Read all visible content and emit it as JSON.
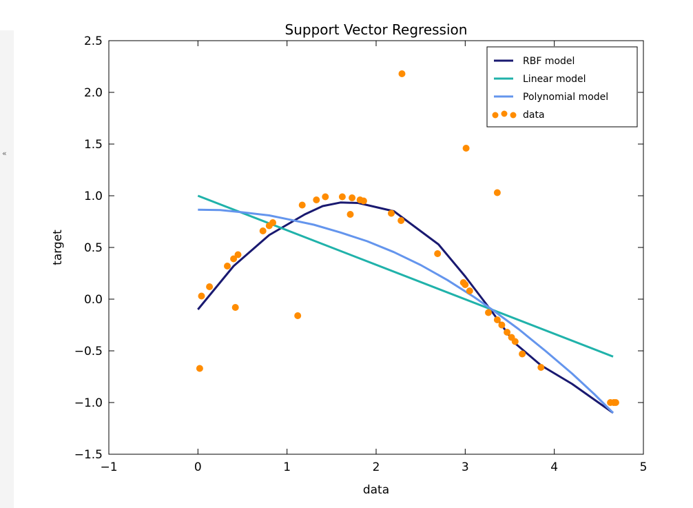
{
  "sidebar": {
    "collapse_glyph": "«"
  },
  "chart_data": {
    "type": "scatter",
    "title": "Support Vector Regression",
    "xlabel": "data",
    "ylabel": "target",
    "xlim": [
      -1,
      5
    ],
    "ylim": [
      -1.5,
      2.5
    ],
    "x_ticks": [
      -1,
      0,
      1,
      2,
      3,
      4,
      5
    ],
    "y_ticks": [
      -1.5,
      -1.0,
      -0.5,
      0.0,
      0.5,
      1.0,
      1.5,
      2.0,
      2.5
    ],
    "x_tick_labels": [
      "−1",
      "0",
      "1",
      "2",
      "3",
      "4",
      "5"
    ],
    "y_tick_labels": [
      "−1.5",
      "−1.0",
      "−0.5",
      "0.0",
      "0.5",
      "1.0",
      "1.5",
      "2.0",
      "2.5"
    ],
    "grid": false,
    "legend_position": "top-right",
    "series": [
      {
        "name": "RBF model",
        "kind": "line",
        "color": "#191970",
        "points": [
          [
            0.0,
            -0.1
          ],
          [
            0.4,
            0.32
          ],
          [
            0.8,
            0.62
          ],
          [
            1.2,
            0.82
          ],
          [
            1.4,
            0.9
          ],
          [
            1.6,
            0.935
          ],
          [
            1.8,
            0.93
          ],
          [
            2.2,
            0.85
          ],
          [
            2.7,
            0.53
          ],
          [
            3.0,
            0.22
          ],
          [
            3.3,
            -0.12
          ],
          [
            3.55,
            -0.42
          ],
          [
            3.85,
            -0.64
          ],
          [
            4.2,
            -0.82
          ],
          [
            4.66,
            -1.1
          ]
        ]
      },
      {
        "name": "Linear model",
        "kind": "line",
        "color": "#20b2aa",
        "points": [
          [
            0.0,
            1.0
          ],
          [
            4.66,
            -0.555
          ]
        ]
      },
      {
        "name": "Polynomial model",
        "kind": "line",
        "color": "#6495ed",
        "points": [
          [
            0.0,
            0.865
          ],
          [
            0.25,
            0.862
          ],
          [
            0.5,
            0.84
          ],
          [
            0.8,
            0.81
          ],
          [
            1.0,
            0.775
          ],
          [
            1.3,
            0.72
          ],
          [
            1.6,
            0.645
          ],
          [
            1.9,
            0.56
          ],
          [
            2.2,
            0.455
          ],
          [
            2.5,
            0.33
          ],
          [
            2.8,
            0.185
          ],
          [
            3.1,
            0.02
          ],
          [
            3.3,
            -0.1
          ],
          [
            3.6,
            -0.29
          ],
          [
            3.9,
            -0.5
          ],
          [
            4.2,
            -0.72
          ],
          [
            4.45,
            -0.92
          ],
          [
            4.66,
            -1.1
          ]
        ]
      },
      {
        "name": "data",
        "kind": "scatter",
        "color": "#ff8c00",
        "points": [
          [
            0.02,
            -0.67
          ],
          [
            0.04,
            0.03
          ],
          [
            0.13,
            0.12
          ],
          [
            0.33,
            0.32
          ],
          [
            0.4,
            0.39
          ],
          [
            0.42,
            -0.08
          ],
          [
            0.45,
            0.43
          ],
          [
            0.73,
            0.66
          ],
          [
            0.8,
            0.71
          ],
          [
            0.84,
            0.74
          ],
          [
            1.12,
            -0.16
          ],
          [
            1.17,
            0.91
          ],
          [
            1.33,
            0.96
          ],
          [
            1.43,
            0.99
          ],
          [
            1.62,
            0.99
          ],
          [
            1.71,
            0.82
          ],
          [
            1.73,
            0.98
          ],
          [
            1.82,
            0.96
          ],
          [
            1.86,
            0.95
          ],
          [
            2.17,
            0.83
          ],
          [
            2.28,
            0.76
          ],
          [
            2.29,
            2.18
          ],
          [
            2.69,
            0.44
          ],
          [
            2.98,
            0.16
          ],
          [
            3.0,
            0.14
          ],
          [
            3.01,
            1.46
          ],
          [
            3.05,
            0.08
          ],
          [
            3.26,
            -0.13
          ],
          [
            3.36,
            1.03
          ],
          [
            3.36,
            -0.2
          ],
          [
            3.41,
            -0.25
          ],
          [
            3.47,
            -0.32
          ],
          [
            3.52,
            -0.37
          ],
          [
            3.56,
            -0.41
          ],
          [
            3.64,
            -0.53
          ],
          [
            3.85,
            -0.66
          ],
          [
            4.63,
            -1.0
          ],
          [
            4.67,
            -1.0
          ],
          [
            4.69,
            -1.0
          ]
        ]
      }
    ]
  }
}
